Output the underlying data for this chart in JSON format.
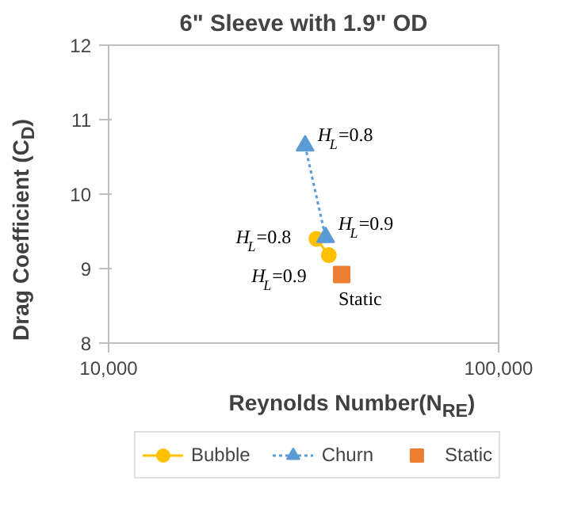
{
  "chart_data": {
    "type": "scatter",
    "title": "6\" Sleeve with 1.9\" OD",
    "xlabel": "Reynolds Number(N$_{RE}$)",
    "ylabel": "Drag Coefficient (C$_{D}$)",
    "log": "x",
    "xlim": [
      10000,
      100000
    ],
    "xticks": [
      {
        "value": 10000,
        "label": "10,000"
      },
      {
        "value": 100000,
        "label": "100,000"
      }
    ],
    "ylim": [
      8,
      12
    ],
    "yticks": [
      8,
      9,
      10,
      11,
      12
    ],
    "grid": false,
    "legend": "bottom",
    "series": [
      {
        "name": "Bubble",
        "type": "line",
        "color": "#ffc000",
        "marker": "circle",
        "line_style": "solid",
        "x": [
          34100,
          36700
        ],
        "values": [
          9.4,
          9.18
        ]
      },
      {
        "name": "Churn",
        "type": "line",
        "color": "#5b9bd5",
        "marker": "triangle",
        "line_style": "dotted",
        "x": [
          31900,
          36000
        ],
        "values": [
          10.65,
          9.42
        ]
      },
      {
        "name": "Static",
        "type": "scatter",
        "color": "#ed7d31",
        "marker": "square",
        "x": [
          39600
        ],
        "values": [
          8.92
        ]
      }
    ],
    "annotations": [
      {
        "text": "H$_{L}$=0.8",
        "x": 31900,
        "y": 10.65
      },
      {
        "text": "H$_{L}$=0.9",
        "x": 36000,
        "y": 9.42
      },
      {
        "text": "H$_{L}$=0.8",
        "x": 34100,
        "y": 9.4
      },
      {
        "text": "H$_{L}$=0.9",
        "x": 36700,
        "y": 9.18
      },
      {
        "text": "Static",
        "x": 39600,
        "y": 8.92
      }
    ]
  }
}
